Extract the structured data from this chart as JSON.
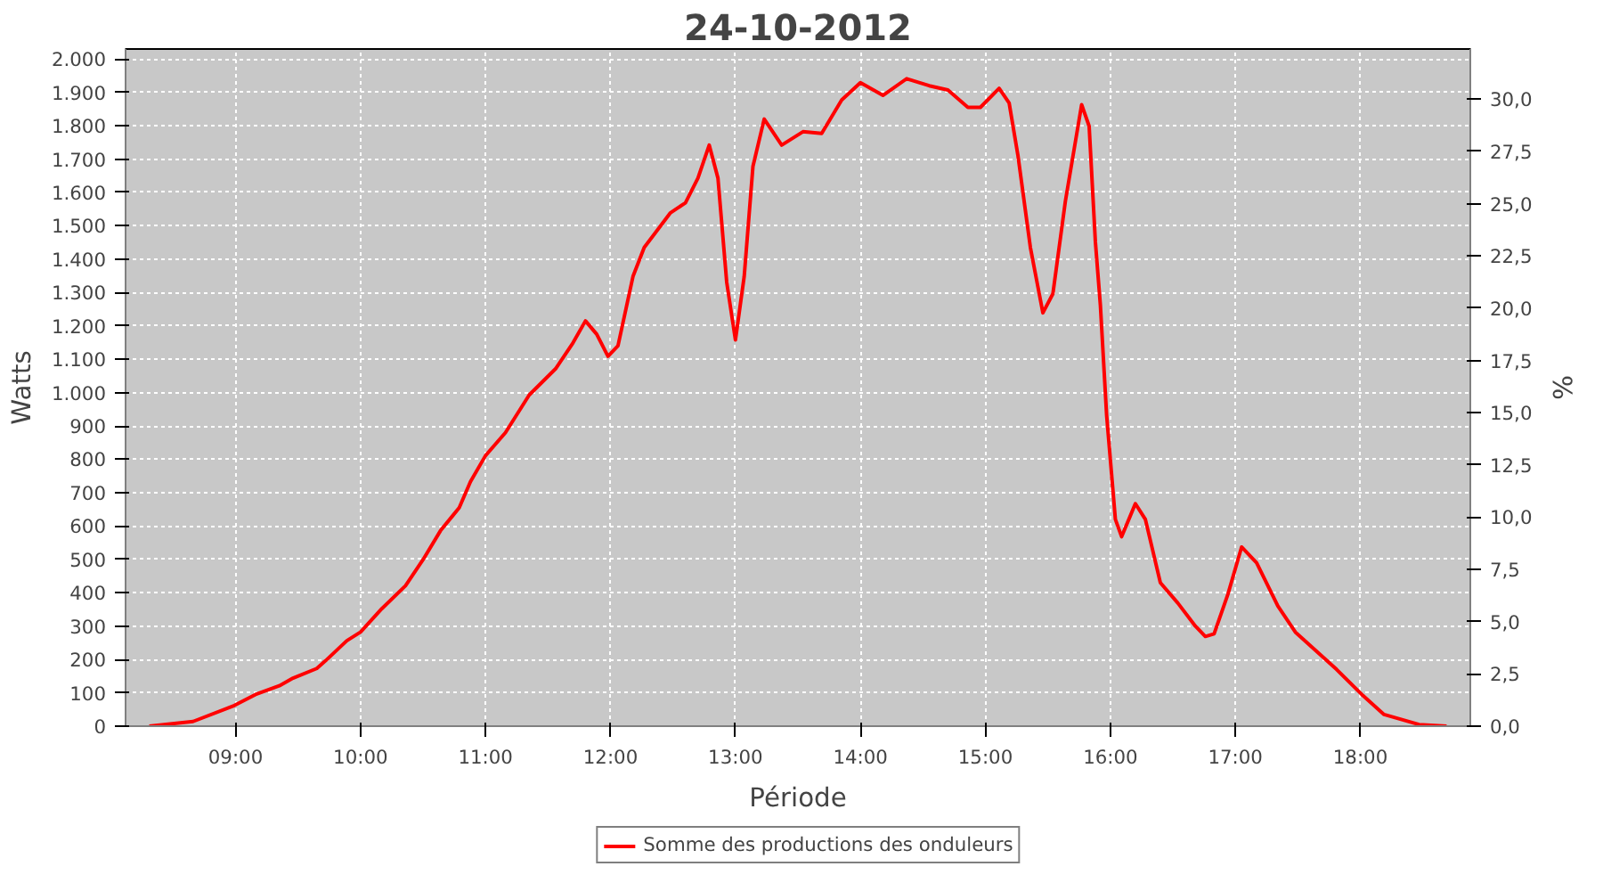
{
  "chart_data": {
    "type": "line",
    "title": "24-10-2012",
    "xlabel": "Période",
    "ylabel": "Watts",
    "y2label": "%",
    "x": [
      8.31,
      8.66,
      8.99,
      9.16,
      9.35,
      9.46,
      9.65,
      9.72,
      9.89,
      10.0,
      10.17,
      10.36,
      10.5,
      10.64,
      10.79,
      10.88,
      11.0,
      11.16,
      11.35,
      11.56,
      11.7,
      11.8,
      11.89,
      11.98,
      12.06,
      12.18,
      12.27,
      12.48,
      12.6,
      12.7,
      12.79,
      12.86,
      12.93,
      13.0,
      13.07,
      13.14,
      13.23,
      13.37,
      13.54,
      13.69,
      13.85,
      14.0,
      14.18,
      14.37,
      14.55,
      14.7,
      14.86,
      14.96,
      15.11,
      15.19,
      15.26,
      15.36,
      15.46,
      15.54,
      15.64,
      15.77,
      15.83,
      15.88,
      15.92,
      15.97,
      16.04,
      16.09,
      16.2,
      16.28,
      16.4,
      16.54,
      16.68,
      16.76,
      16.83,
      16.94,
      17.05,
      17.17,
      17.34,
      17.48,
      17.81,
      18.02,
      18.19,
      18.47,
      18.69
    ],
    "series": [
      {
        "name": "Somme des productions des onduleurs",
        "color": "#ff0000",
        "values": [
          0,
          14,
          62,
          95,
          121,
          144,
          173,
          196,
          256,
          282,
          352,
          421,
          499,
          586,
          655,
          733,
          811,
          880,
          993,
          1071,
          1149,
          1215,
          1175,
          1109,
          1140,
          1348,
          1435,
          1539,
          1569,
          1643,
          1742,
          1643,
          1331,
          1158,
          1348,
          1678,
          1820,
          1742,
          1782,
          1777,
          1877,
          1929,
          1891,
          1941,
          1920,
          1907,
          1855,
          1855,
          1912,
          1868,
          1712,
          1435,
          1239,
          1296,
          1574,
          1863,
          1799,
          1452,
          1262,
          932,
          620,
          568,
          667,
          620,
          430,
          369,
          300,
          269,
          277,
          395,
          537,
          490,
          360,
          282,
          170,
          92,
          35,
          5,
          0
        ]
      }
    ],
    "xlim": [
      8.12,
      18.88
    ],
    "xticks": [
      {
        "value": 9,
        "label": "09:00"
      },
      {
        "value": 10,
        "label": "10:00"
      },
      {
        "value": 11,
        "label": "11:00"
      },
      {
        "value": 12,
        "label": "12:00"
      },
      {
        "value": 13,
        "label": "13:00"
      },
      {
        "value": 14,
        "label": "14:00"
      },
      {
        "value": 15,
        "label": "15:00"
      },
      {
        "value": 16,
        "label": "16:00"
      },
      {
        "value": 17,
        "label": "17:00"
      },
      {
        "value": 18,
        "label": "18:00"
      }
    ],
    "ylim": [
      0,
      2030
    ],
    "yticks": [
      0,
      100,
      200,
      300,
      400,
      500,
      600,
      700,
      800,
      900,
      {
        "value": 1000,
        "label": "1.000"
      },
      {
        "value": 1100,
        "label": "1.100"
      },
      {
        "value": 1200,
        "label": "1.200"
      },
      {
        "value": 1300,
        "label": "1.300"
      },
      {
        "value": 1400,
        "label": "1.400"
      },
      {
        "value": 1500,
        "label": "1.500"
      },
      {
        "value": 1600,
        "label": "1.600"
      },
      {
        "value": 1700,
        "label": "1.700"
      },
      {
        "value": 1800,
        "label": "1.800"
      },
      {
        "value": 1900,
        "label": "1.900"
      },
      {
        "value": 2000,
        "label": "2.000"
      }
    ],
    "y2lim": [
      0,
      32.4
    ],
    "y2ticks": [
      {
        "value": 0,
        "label": "0,0"
      },
      {
        "value": 2.5,
        "label": "2,5"
      },
      {
        "value": 5,
        "label": "5,0"
      },
      {
        "value": 7.5,
        "label": "7,5"
      },
      {
        "value": 10,
        "label": "10,0"
      },
      {
        "value": 12.5,
        "label": "12,5"
      },
      {
        "value": 15,
        "label": "15,0"
      },
      {
        "value": 17.5,
        "label": "17,5"
      },
      {
        "value": 20,
        "label": "20,0"
      },
      {
        "value": 22.5,
        "label": "22,5"
      },
      {
        "value": 25,
        "label": "25,0"
      },
      {
        "value": 27.5,
        "label": "27,5"
      },
      {
        "value": 30,
        "label": "30,0"
      }
    ],
    "grid": true,
    "legend": "bottom",
    "line_style": "solid"
  }
}
